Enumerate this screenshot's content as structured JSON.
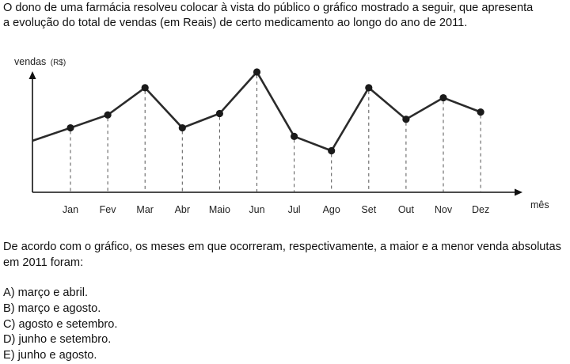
{
  "intro_line1": "O dono de uma farmácia resolveu colocar à vista do público o gráfico mostrado a seguir, que apresenta",
  "intro_line2": "a evolução do total de vendas (em Reais) de certo medicamento ao longo do ano de 2011.",
  "question_line1": "De acordo com o gráfico, os meses em que ocorreram, respectivamente, a maior e a menor venda absolutas",
  "question_line2": "em 2011 foram:",
  "options": [
    "A) março e abril.",
    "B) março e agosto.",
    "C) agosto e setembro.",
    "D) junho e setembro.",
    "E) junho e agosto."
  ],
  "chart_data": {
    "type": "line",
    "ylabel": "vendas",
    "ylabel_unit": "(R$)",
    "xlabel": "mês",
    "categories": [
      "Jan",
      "Fev",
      "Mar",
      "Abr",
      "Maio",
      "Jun",
      "Jul",
      "Ago",
      "Set",
      "Out",
      "Nov",
      "Dez"
    ],
    "start_value": 36,
    "values": [
      45,
      54,
      73,
      45,
      55,
      84,
      39,
      29,
      73,
      51,
      66,
      56
    ],
    "ylim": [
      0,
      100
    ],
    "y_ticks_shown": false,
    "grid": "vertical-dashed-drop-lines",
    "line_color": "#2b2b2b",
    "marker_color": "#1a1a1a"
  }
}
